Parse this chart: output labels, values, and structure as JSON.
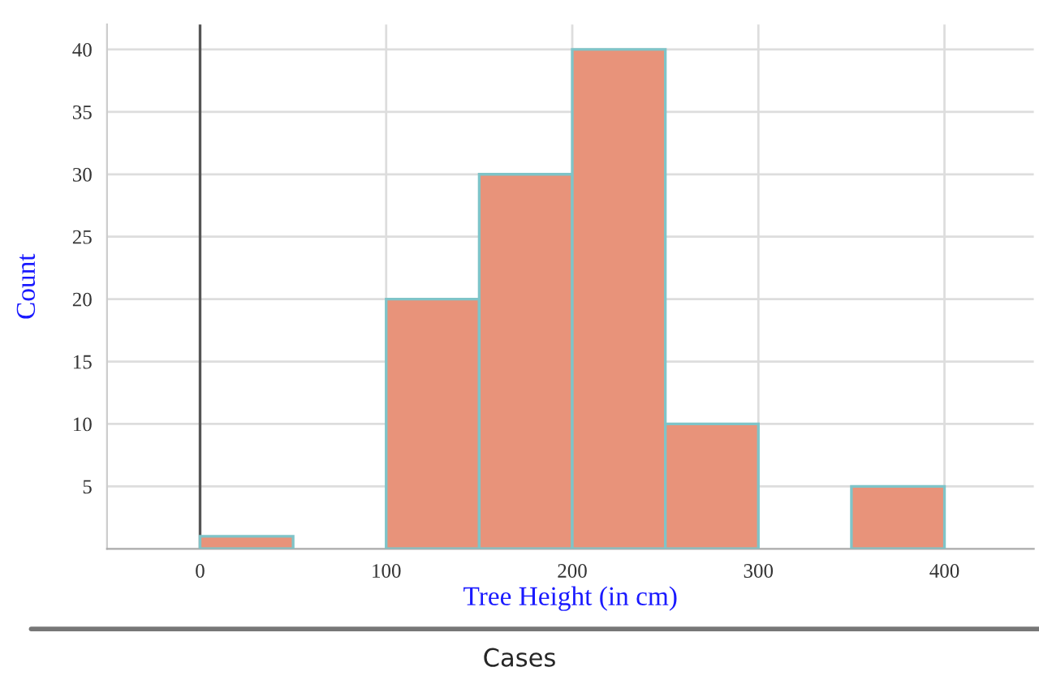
{
  "chart_data": {
    "type": "histogram",
    "xlabel": "Tree Height (in cm)",
    "ylabel": "Count",
    "bins": [
      0,
      50,
      100,
      150,
      200,
      250,
      300,
      350,
      400
    ],
    "values": [
      1,
      0,
      20,
      30,
      40,
      10,
      0,
      5
    ],
    "color": "#e8937a",
    "xlim": [
      -50,
      448
    ],
    "xticks": [
      0,
      100,
      200,
      300,
      400
    ],
    "ylim": [
      0,
      42
    ],
    "yticks": [
      5,
      10,
      15,
      20,
      25,
      30,
      35,
      40
    ],
    "grid": true,
    "ref_lines": [
      {
        "axis": "x",
        "value": 0,
        "color": "#555555"
      }
    ],
    "annotations": [
      "Cases"
    ]
  }
}
